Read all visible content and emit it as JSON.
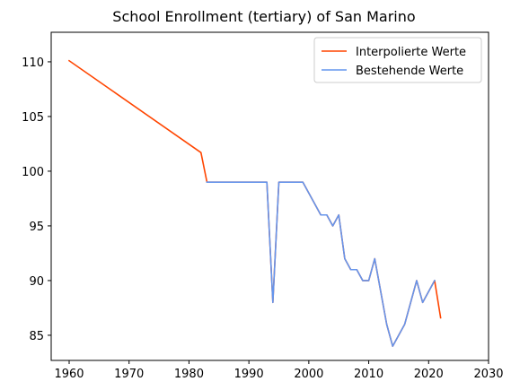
{
  "chart_data": {
    "type": "line",
    "title": "School Enrollment (tertiary) of San Marino",
    "xlabel": "",
    "ylabel": "",
    "xlim": [
      1957,
      2030
    ],
    "ylim": [
      82.7,
      112.7
    ],
    "xticks": [
      1960,
      1970,
      1980,
      1990,
      2000,
      2010,
      2020,
      2030
    ],
    "yticks": [
      85,
      90,
      95,
      100,
      105,
      110
    ],
    "grid": false,
    "legend_position": "top-right",
    "series": [
      {
        "name": "Interpolierte Werte",
        "color": "#ff4500",
        "points": [
          [
            1960,
            110.1
          ],
          [
            1982,
            101.7
          ],
          [
            1983,
            99
          ],
          [
            1993,
            99
          ],
          [
            1994,
            88
          ],
          [
            1995,
            99
          ],
          [
            1999,
            99
          ],
          [
            2002,
            96
          ],
          [
            2003,
            96
          ],
          [
            2004,
            95
          ],
          [
            2005,
            96
          ],
          [
            2006,
            92
          ],
          [
            2007,
            91
          ],
          [
            2008,
            91
          ],
          [
            2009,
            90
          ],
          [
            2010,
            90
          ],
          [
            2011,
            92
          ],
          [
            2013,
            86
          ],
          [
            2014,
            84
          ],
          [
            2016,
            86
          ],
          [
            2018,
            90
          ],
          [
            2019,
            88
          ],
          [
            2021,
            90
          ],
          [
            2022,
            86.6
          ]
        ]
      },
      {
        "name": "Bestehende Werte",
        "color": "#6495ed",
        "points": [
          [
            1983,
            99
          ],
          [
            1993,
            99
          ],
          [
            1994,
            88
          ],
          [
            1995,
            99
          ],
          [
            1999,
            99
          ],
          [
            2002,
            96
          ],
          [
            2003,
            96
          ],
          [
            2004,
            95
          ],
          [
            2005,
            96
          ],
          [
            2006,
            92
          ],
          [
            2007,
            91
          ],
          [
            2008,
            91
          ],
          [
            2009,
            90
          ],
          [
            2010,
            90
          ],
          [
            2011,
            92
          ],
          [
            2013,
            86
          ],
          [
            2014,
            84
          ],
          [
            2016,
            86
          ],
          [
            2018,
            90
          ],
          [
            2019,
            88
          ],
          [
            2021,
            90
          ]
        ]
      }
    ]
  }
}
